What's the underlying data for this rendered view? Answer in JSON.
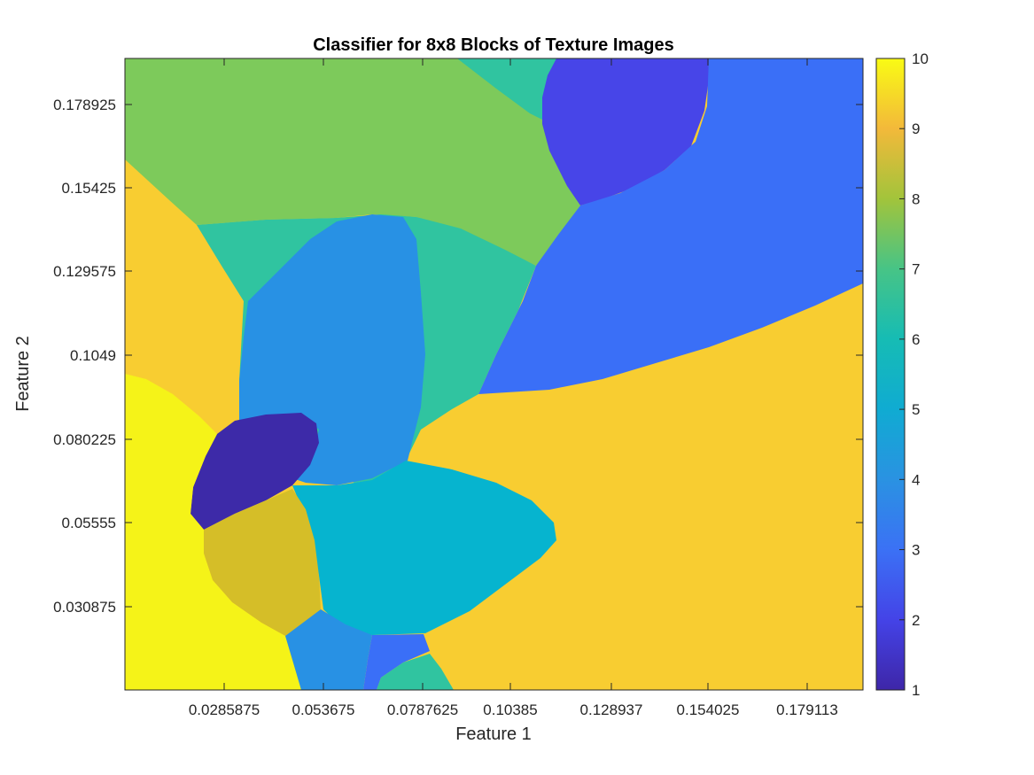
{
  "chart_data": {
    "type": "heatmap",
    "title": "Classifier for 8x8 Blocks of Texture Images",
    "xlabel": "Feature 1",
    "ylabel": "Feature 2",
    "x_ticks": [
      "0.0285875",
      "0.053675",
      "0.0787625",
      "0.10385",
      "0.128937",
      "0.154025",
      "0.179113"
    ],
    "y_ticks": [
      "0.178925",
      "0.15425",
      "0.129575",
      "0.1049",
      "0.080225",
      "0.05555",
      "0.030875"
    ],
    "colorbar": {
      "ticks": [
        "10",
        "9",
        "8",
        "7",
        "6",
        "5",
        "4",
        "3",
        "2",
        "1"
      ],
      "range": [
        1,
        10
      ],
      "colormap": "parula"
    },
    "class_colors": {
      "1": "#3d2aa8",
      "2": "#4745e8",
      "3": "#3a6ff7",
      "4": "#2891e4",
      "5": "#06b4cf",
      "6": "#30c4a0",
      "7": "#7dca5b",
      "8": "#d5be28",
      "9": "#f8cd31",
      "10": "#f5f318"
    },
    "regions": [
      {
        "class": 9,
        "label": "background / right-lower and left-middle"
      },
      {
        "class": 7,
        "label": "top band"
      },
      {
        "class": 6,
        "label": "top small wedge"
      },
      {
        "class": 2,
        "label": "top-right blob"
      },
      {
        "class": 3,
        "label": "right region"
      },
      {
        "class": 6,
        "label": "middle band"
      },
      {
        "class": 4,
        "label": "center blob"
      },
      {
        "class": 1,
        "label": "left blob"
      },
      {
        "class": 5,
        "label": "lower-center region"
      },
      {
        "class": 8,
        "label": "lower-left blob"
      },
      {
        "class": 10,
        "label": "bottom-left region"
      },
      {
        "class": 4,
        "label": "bottom small region"
      },
      {
        "class": 3,
        "label": "bottom small sliver"
      },
      {
        "class": 6,
        "label": "bottom small wedge"
      }
    ]
  }
}
